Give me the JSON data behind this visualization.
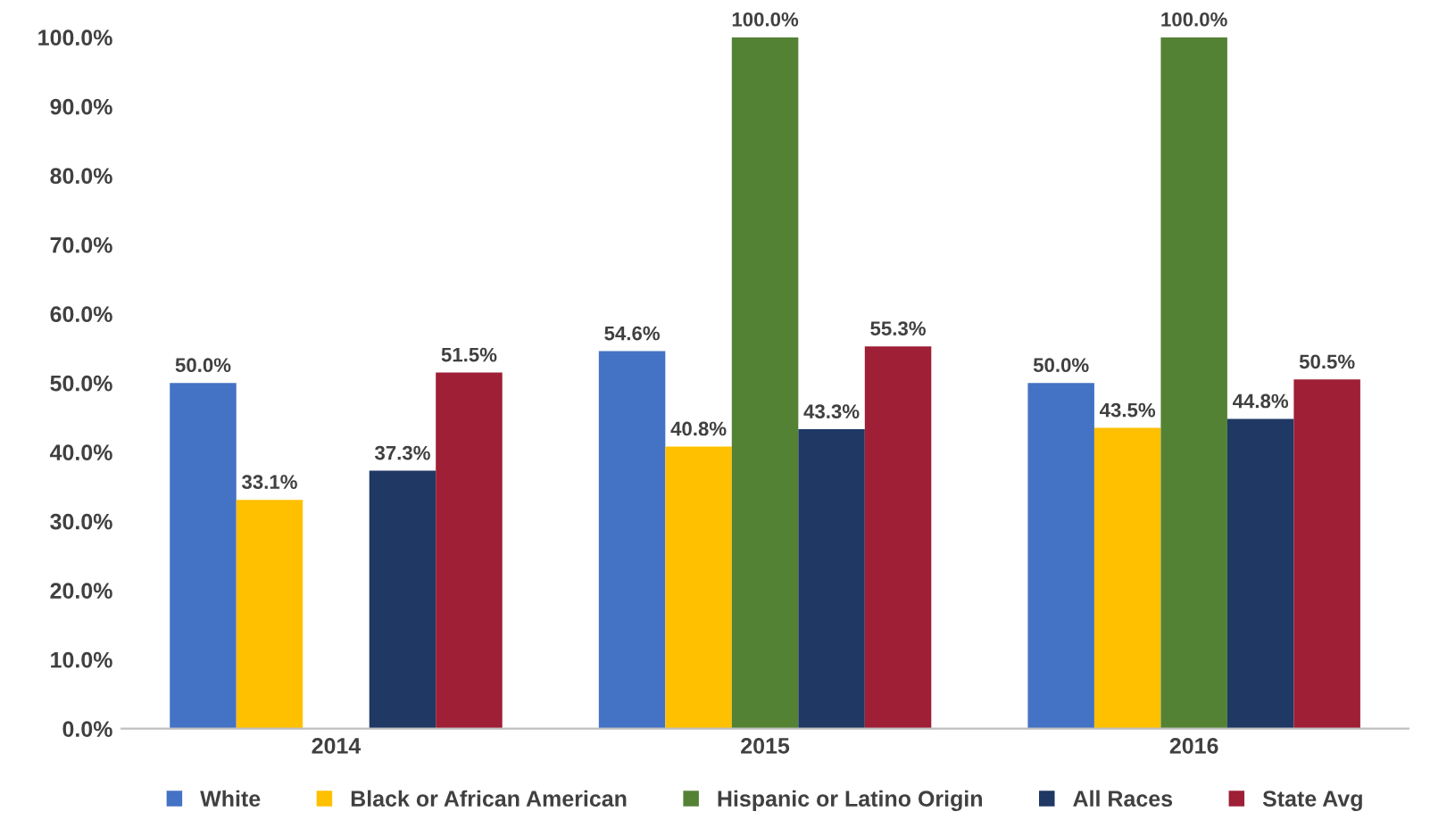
{
  "chart_data": {
    "type": "bar",
    "categories": [
      "2014",
      "2015",
      "2016"
    ],
    "series": [
      {
        "name": "White",
        "color": "#4472c4",
        "values": [
          50.0,
          54.6,
          50.0
        ],
        "value_labels": [
          "50.0%",
          "54.6%",
          "50.0%"
        ]
      },
      {
        "name": "Black or African American",
        "color": "#ffc000",
        "values": [
          33.1,
          40.8,
          43.5
        ],
        "value_labels": [
          "33.1%",
          "40.8%",
          "43.5%"
        ]
      },
      {
        "name": "Hispanic or Latino Origin",
        "color": "#548235",
        "values": [
          null,
          100.0,
          100.0
        ],
        "value_labels": [
          null,
          "100.0%",
          "100.0%"
        ]
      },
      {
        "name": "All Races",
        "color": "#1f3864",
        "values": [
          37.3,
          43.3,
          44.8
        ],
        "value_labels": [
          "37.3%",
          "43.3%",
          "44.8%"
        ]
      },
      {
        "name": "State Avg",
        "color": "#9e1f36",
        "values": [
          51.5,
          55.3,
          50.5
        ],
        "value_labels": [
          "51.5%",
          "55.3%",
          "50.5%"
        ]
      }
    ],
    "ylim": [
      0,
      100
    ],
    "yticks": [
      {
        "value": 0,
        "label": "0.0%"
      },
      {
        "value": 10,
        "label": "10.0%"
      },
      {
        "value": 20,
        "label": "20.0%"
      },
      {
        "value": 30,
        "label": "30.0%"
      },
      {
        "value": 40,
        "label": "40.0%"
      },
      {
        "value": 50,
        "label": "50.0%"
      },
      {
        "value": 60,
        "label": "60.0%"
      },
      {
        "value": 70,
        "label": "70.0%"
      },
      {
        "value": 80,
        "label": "80.0%"
      },
      {
        "value": 90,
        "label": "90.0%"
      },
      {
        "value": 100,
        "label": "100.0%"
      }
    ],
    "grid": false,
    "legend": "bottom"
  }
}
